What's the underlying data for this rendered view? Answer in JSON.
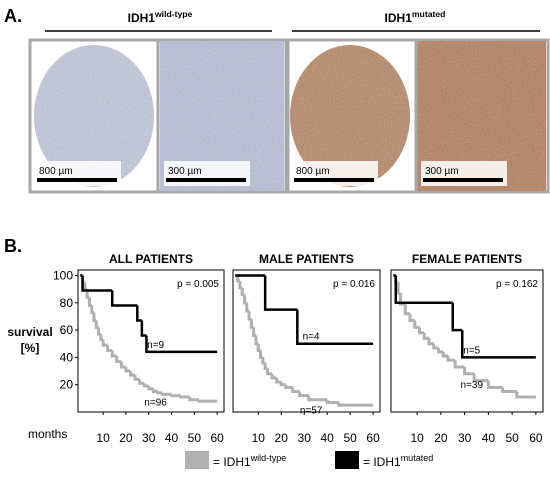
{
  "panel_a": {
    "label": "A.",
    "groups": [
      {
        "gene": "IDH1",
        "status": "wild-type",
        "scale_bars": [
          "800 µm",
          "300 µm"
        ]
      },
      {
        "gene": "IDH1",
        "status": "mutated",
        "scale_bars": [
          "800 µm",
          "300 µm"
        ]
      }
    ]
  },
  "panel_b": {
    "label": "B.",
    "ylabel": [
      "survival",
      "[%]"
    ],
    "xlabel": "months",
    "legend": [
      {
        "prefix": "= IDH1",
        "status": "wild-type",
        "color": "#b0b0b0"
      },
      {
        "prefix": "= IDH1",
        "status": "mutated",
        "color": "#000000"
      }
    ]
  },
  "chart_data": [
    {
      "type": "step",
      "title": "ALL PATIENTS",
      "annotation": "p = 0.005",
      "xlim": [
        -1,
        63
      ],
      "ylim": [
        0,
        104
      ],
      "xticks": [
        10,
        20,
        30,
        40,
        50,
        60
      ],
      "yticks": [
        20,
        40,
        60,
        80,
        100
      ],
      "series": [
        {
          "color": "#b0b0b0",
          "label": "n=96",
          "x": [
            0,
            1,
            2,
            3,
            4,
            5,
            6,
            7,
            8,
            9,
            10,
            12,
            14,
            16,
            18,
            20,
            22,
            24,
            26,
            28,
            30,
            32,
            34,
            36,
            40,
            44,
            48,
            52,
            60
          ],
          "values": [
            100,
            95,
            90,
            84,
            78,
            73,
            67,
            62,
            57,
            53,
            49,
            45,
            41,
            37,
            33,
            30,
            27,
            24,
            21,
            19,
            17,
            15,
            14,
            13,
            12,
            11,
            9,
            8,
            8
          ]
        },
        {
          "color": "#000000",
          "label": "n=9",
          "x": [
            0,
            1,
            14,
            25,
            27,
            29,
            60
          ],
          "values": [
            100,
            89,
            78,
            67,
            56,
            44,
            44
          ]
        }
      ]
    },
    {
      "type": "step",
      "title": "MALE PATIENTS",
      "annotation": "p = 0.016",
      "xlim": [
        -1,
        63
      ],
      "ylim": [
        0,
        104
      ],
      "xticks": [
        10,
        20,
        30,
        40,
        50,
        60
      ],
      "series": [
        {
          "color": "#b0b0b0",
          "label": "n=57",
          "x": [
            0,
            1,
            2,
            3,
            4,
            5,
            6,
            7,
            8,
            9,
            10,
            11,
            12,
            13,
            14,
            16,
            18,
            20,
            22,
            25,
            28,
            32,
            40,
            45,
            60
          ],
          "values": [
            100,
            96,
            91,
            86,
            80,
            74,
            68,
            62,
            56,
            50,
            45,
            40,
            36,
            32,
            28,
            25,
            22,
            20,
            18,
            15,
            12,
            9,
            7,
            5,
            5
          ]
        },
        {
          "color": "#000000",
          "label": "n=4",
          "x": [
            0,
            13,
            27,
            60
          ],
          "values": [
            100,
            75,
            50,
            50
          ]
        }
      ]
    },
    {
      "type": "step",
      "title": "FEMALE PATIENTS",
      "annotation": "p = 0.162",
      "xlim": [
        -1,
        63
      ],
      "ylim": [
        0,
        104
      ],
      "xticks": [
        10,
        20,
        30,
        40,
        50,
        60
      ],
      "series": [
        {
          "color": "#b0b0b0",
          "label": "n=39",
          "x": [
            0,
            1,
            2,
            3,
            5,
            7,
            9,
            11,
            13,
            15,
            17,
            19,
            21,
            23,
            26,
            30,
            34,
            40,
            46,
            52,
            60
          ],
          "values": [
            100,
            95,
            87,
            79,
            72,
            67,
            62,
            58,
            54,
            50,
            47,
            44,
            41,
            38,
            33,
            28,
            23,
            18,
            15,
            11,
            11
          ]
        },
        {
          "color": "#000000",
          "label": "n=5",
          "x": [
            0,
            1,
            25,
            29,
            60
          ],
          "values": [
            100,
            80,
            60,
            40,
            40
          ]
        }
      ]
    }
  ]
}
